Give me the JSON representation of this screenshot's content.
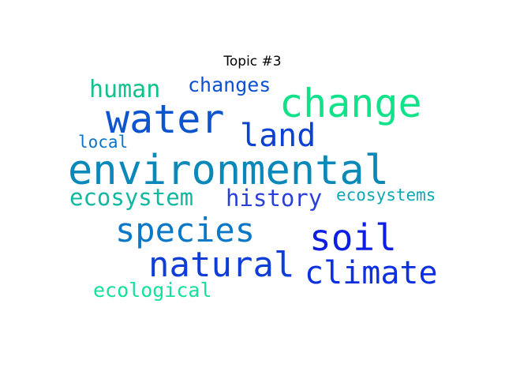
{
  "title": "Topic #3",
  "words": {
    "environmental": {
      "text": "environmental",
      "color": "#0a88b8"
    },
    "water": {
      "text": "water",
      "color": "#0d55cf"
    },
    "change": {
      "text": "change",
      "color": "#10e28a"
    },
    "species": {
      "text": "species",
      "color": "#0a78c6"
    },
    "soil": {
      "text": "soil",
      "color": "#0d1fe4"
    },
    "natural": {
      "text": "natural",
      "color": "#0e3ed7"
    },
    "climate": {
      "text": "climate",
      "color": "#0d2fe2"
    },
    "land": {
      "text": "land",
      "color": "#0c42d2"
    },
    "history": {
      "text": "history",
      "color": "#2a40d8"
    },
    "ecosystem": {
      "text": "ecosystem",
      "color": "#10b8a0"
    },
    "human": {
      "text": "human",
      "color": "#12c28e"
    },
    "changes": {
      "text": "changes",
      "color": "#0d50d2"
    },
    "local": {
      "text": "local",
      "color": "#0b74c8"
    },
    "ecosystems": {
      "text": "ecosystems",
      "color": "#0ea8b6"
    },
    "ecological": {
      "text": "ecological",
      "color": "#14e29a"
    }
  }
}
